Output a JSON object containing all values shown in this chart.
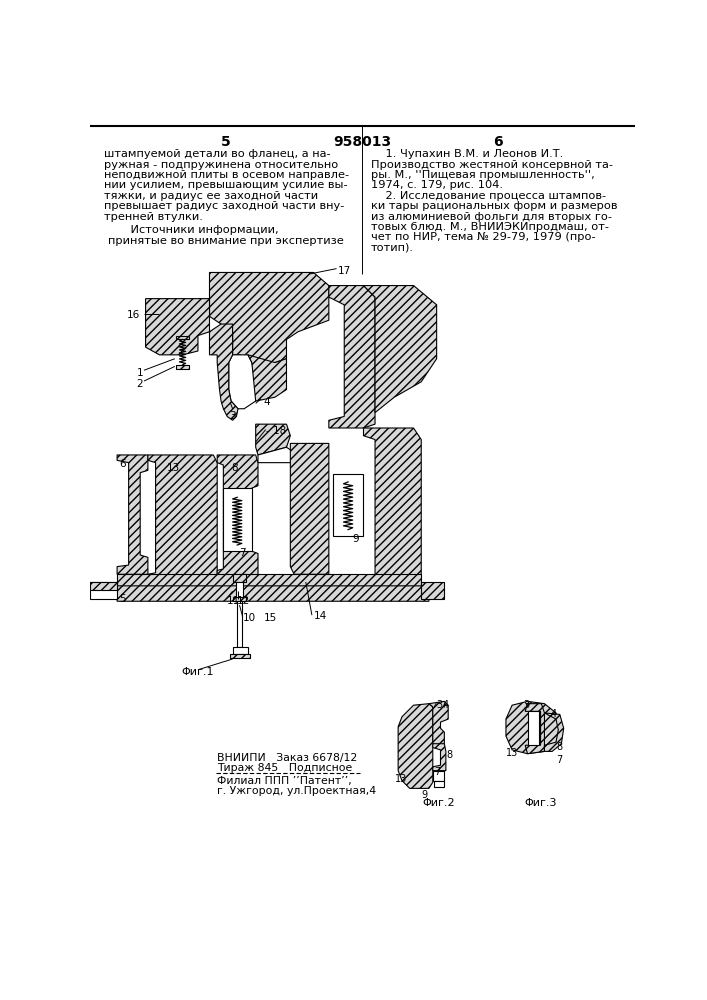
{
  "bg": "#ffffff",
  "page_left": "5",
  "patent_no": "958013",
  "page_right": "6",
  "left_text": [
    "штампуемой детали во фланец, а на-",
    "ружная - подпружинена относительно",
    "неподвижной плиты в осевом направле-",
    "нии усилием, превышающим усилие вы-",
    "тяжки, и радиус ее заходной части",
    "превышает радиус заходной части вну-",
    "тренней втулки."
  ],
  "src_hdr1": "    Источники информации,",
  "src_hdr2": "принятые во внимание при экспертизе",
  "right_text": [
    "    1. Чупахин В.М. и Леонов И.Т.",
    "Производство жестяной консервной та-",
    "ры. М., ''Пищевая промышленность'',",
    "1974, с. 179, рис. 104.",
    "    2. Исследование процесса штампов-",
    "ки тары рациональных форм и размеров",
    "из алюминиевой фольги для вторых го-",
    "товых блюд. М., ВНИИЭКИпродмаш, от-",
    "чет по НИР, тема № 29-79, 1979 (про-",
    "тотип)."
  ],
  "bot_text": [
    "ВНИИПИ   Заказ 6678/12",
    "Тираж 845   Подписное",
    "Филиал ППП ’’Патент’’,",
    "г. Ужгород, ул.Проектная,4"
  ],
  "hatch_color": "#888888",
  "line_color": "#000000",
  "fill_hatch": "#d8d8d8",
  "fill_white": "#ffffff",
  "fill_gray": "#c0c0c0"
}
